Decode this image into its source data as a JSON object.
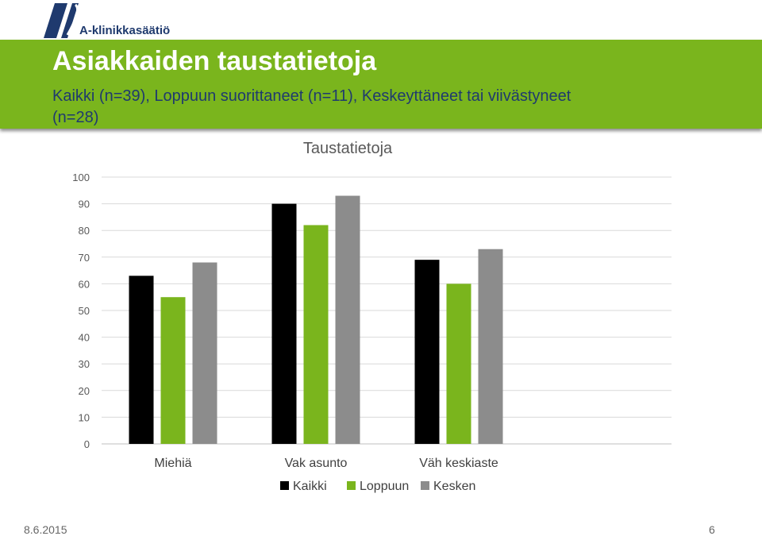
{
  "header": {
    "logo_text": "A-klinikkasäätiö",
    "title": "Asiakkaiden taustatietoja",
    "subtitle": "Kaikki (n=39), Loppuun suorittaneet (n=11), Keskeyttäneet tai viivästyneet (n=28)"
  },
  "colors": {
    "banner": "#7ab51d",
    "kaikki": "#000000",
    "loppuun": "#7ab51d",
    "kesken": "#8c8c8c"
  },
  "chart_data": {
    "type": "bar",
    "title": "Taustatietoja",
    "categories": [
      "Miehiä",
      "Vak asunto",
      "Väh keskiaste"
    ],
    "series": [
      {
        "name": "Kaikki",
        "values": [
          63,
          90,
          69
        ]
      },
      {
        "name": "Loppuun",
        "values": [
          55,
          82,
          60
        ]
      },
      {
        "name": "Kesken",
        "values": [
          68,
          93,
          73
        ]
      }
    ],
    "ylim": [
      0,
      100
    ],
    "yticks": [
      "0",
      "10",
      "20",
      "30",
      "40",
      "50",
      "60",
      "70",
      "80",
      "90",
      "100"
    ],
    "grid": true,
    "legend": "bottom"
  },
  "footer": {
    "date": "8.6.2015",
    "page": "6"
  }
}
